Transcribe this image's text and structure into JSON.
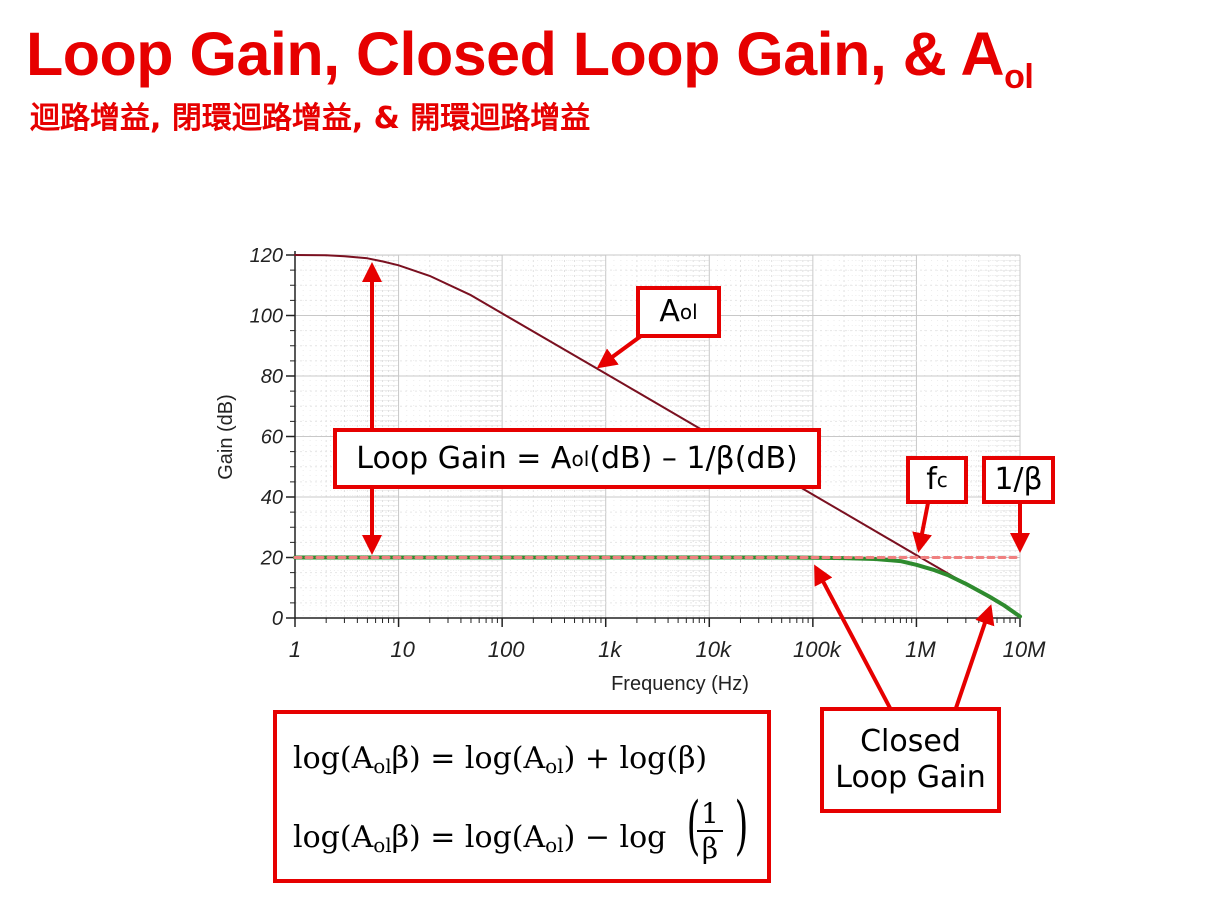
{
  "header": {
    "title_main": "Loop Gain, Closed Loop Gain, & A",
    "title_sub": "ol",
    "subtitle": "迴路增益, 閉環迴路增益, & 開環迴路增益",
    "color": "#e60000"
  },
  "chart_data": {
    "type": "line",
    "xlabel": "Frequency (Hz)",
    "ylabel": "Gain (dB)",
    "x_scale": "log",
    "xlim": [
      1,
      10000000
    ],
    "ylim": [
      0,
      120
    ],
    "grid": true,
    "x_ticks": [
      1,
      10,
      100,
      1000,
      10000,
      100000,
      1000000,
      10000000
    ],
    "x_tick_labels": [
      "1",
      "10",
      "100",
      "1k",
      "10k",
      "100k",
      "1M",
      "10M"
    ],
    "y_ticks": [
      0,
      20,
      40,
      60,
      80,
      100,
      120
    ],
    "y_tick_labels": [
      "0",
      "20",
      "40",
      "60",
      "80",
      "100",
      "120"
    ],
    "series": [
      {
        "color": "#7a1020",
        "style": "solid",
        "points": [
          [
            1,
            120
          ],
          [
            2,
            119.9
          ],
          [
            3,
            119.6
          ],
          [
            5,
            118.9
          ],
          [
            7,
            117.9
          ],
          [
            10,
            116.6
          ],
          [
            20,
            113.1
          ],
          [
            50,
            106.7
          ],
          [
            100,
            100.7
          ],
          [
            1000,
            80.8
          ],
          [
            10000,
            60.8
          ],
          [
            100000,
            40.8
          ],
          [
            1000000,
            20.8
          ],
          [
            2000000,
            14.8
          ],
          [
            5000000,
            6.8
          ],
          [
            10000000,
            0.8
          ]
        ]
      },
      {
        "color": "#f08080",
        "style": "dashed",
        "points": [
          [
            1,
            20
          ],
          [
            10000000,
            20
          ]
        ]
      },
      {
        "color": "#2e8b2e",
        "style": "solid",
        "points": [
          [
            1,
            20
          ],
          [
            10000,
            20
          ],
          [
            50000,
            20
          ],
          [
            100000,
            19.9
          ],
          [
            200000,
            19.8
          ],
          [
            400000,
            19.5
          ],
          [
            700000,
            18.8
          ],
          [
            1000000,
            17.6
          ],
          [
            1500000,
            15.8
          ],
          [
            2000000,
            14.2
          ],
          [
            3000000,
            11.3
          ],
          [
            5000000,
            7.2
          ],
          [
            7000000,
            4.2
          ],
          [
            10000000,
            0.5
          ]
        ]
      }
    ]
  },
  "callouts": {
    "aol": {
      "main": "A",
      "sub": "ol"
    },
    "loop_gain": {
      "prefix": "Loop Gain = A",
      "sub": "ol",
      "suffix": "(dB) – 1/β(dB)"
    },
    "fc": {
      "main": "f",
      "sub": "c"
    },
    "beta": {
      "text": "1/β"
    },
    "closed_loop": {
      "line1": "Closed",
      "line2": "Loop Gain"
    }
  },
  "equations": {
    "eq1": {
      "a": "log(A",
      "b": "ol",
      "c": "β) = log(A",
      "d": "ol",
      "e": ") + log(β)"
    },
    "eq2": {
      "a": "log(A",
      "b": "ol",
      "c": "β) = log(A",
      "d": "ol",
      "e": ") − log",
      "num": "1",
      "den": "β"
    }
  }
}
